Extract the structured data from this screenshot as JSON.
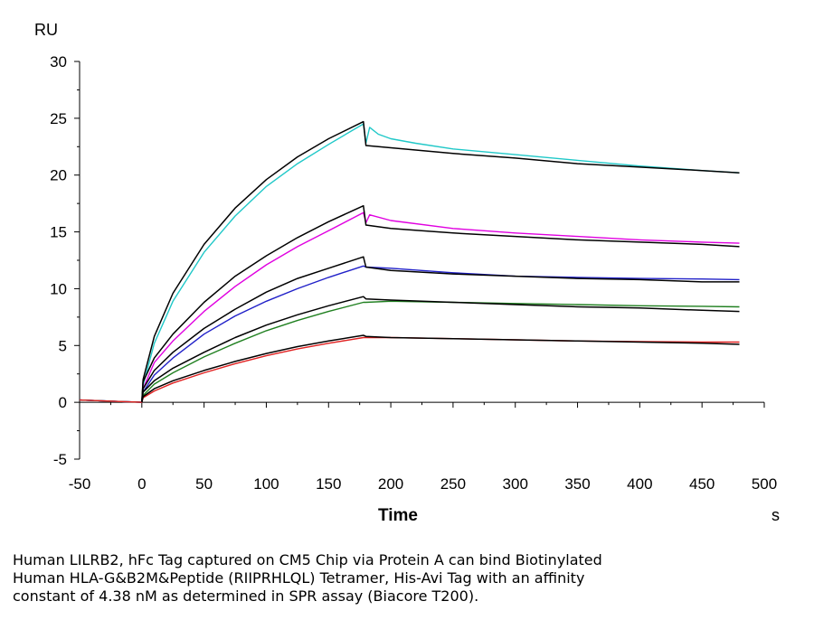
{
  "chart_data": {
    "type": "line",
    "ylabel": "RU",
    "xlabel": "Time",
    "x_unit": "s",
    "xlim": [
      -50,
      500
    ],
    "ylim": [
      -5,
      30
    ],
    "x_ticks": [
      -50,
      0,
      50,
      100,
      150,
      200,
      250,
      300,
      350,
      400,
      450,
      500
    ],
    "y_ticks": [
      -5,
      0,
      5,
      10,
      15,
      20,
      25,
      30
    ],
    "grid": false,
    "injection_end": 180,
    "series": [
      {
        "color": "#20c8c8",
        "kind": "measured",
        "points": [
          [
            -50,
            0.2
          ],
          [
            0,
            0
          ],
          [
            1,
            1.5
          ],
          [
            10,
            5.2
          ],
          [
            25,
            8.9
          ],
          [
            50,
            13.2
          ],
          [
            75,
            16.4
          ],
          [
            100,
            19.0
          ],
          [
            125,
            21.0
          ],
          [
            150,
            22.7
          ],
          [
            178,
            24.5
          ],
          [
            180,
            22.8
          ],
          [
            183,
            24.2
          ],
          [
            190,
            23.6
          ],
          [
            200,
            23.2
          ],
          [
            220,
            22.8
          ],
          [
            250,
            22.3
          ],
          [
            300,
            21.8
          ],
          [
            350,
            21.3
          ],
          [
            400,
            20.8
          ],
          [
            450,
            20.4
          ],
          [
            480,
            20.2
          ]
        ]
      },
      {
        "color": "#000000",
        "kind": "fit",
        "points": [
          [
            0,
            0
          ],
          [
            1,
            2.0
          ],
          [
            10,
            5.8
          ],
          [
            25,
            9.6
          ],
          [
            50,
            13.9
          ],
          [
            75,
            17.1
          ],
          [
            100,
            19.6
          ],
          [
            125,
            21.6
          ],
          [
            150,
            23.2
          ],
          [
            178,
            24.7
          ],
          [
            180,
            22.6
          ],
          [
            200,
            22.4
          ],
          [
            250,
            21.9
          ],
          [
            300,
            21.5
          ],
          [
            350,
            21.0
          ],
          [
            400,
            20.7
          ],
          [
            450,
            20.4
          ],
          [
            480,
            20.2
          ]
        ]
      },
      {
        "color": "#e000e0",
        "kind": "measured",
        "points": [
          [
            -50,
            0.2
          ],
          [
            0,
            0
          ],
          [
            1,
            1.2
          ],
          [
            10,
            3.5
          ],
          [
            25,
            5.4
          ],
          [
            50,
            8.0
          ],
          [
            75,
            10.2
          ],
          [
            100,
            12.1
          ],
          [
            125,
            13.7
          ],
          [
            150,
            15.1
          ],
          [
            178,
            16.7
          ],
          [
            180,
            15.8
          ],
          [
            183,
            16.5
          ],
          [
            200,
            16.0
          ],
          [
            250,
            15.3
          ],
          [
            300,
            14.9
          ],
          [
            350,
            14.6
          ],
          [
            400,
            14.3
          ],
          [
            450,
            14.1
          ],
          [
            480,
            14.0
          ]
        ]
      },
      {
        "color": "#000000",
        "kind": "fit",
        "points": [
          [
            0,
            0
          ],
          [
            1,
            1.8
          ],
          [
            10,
            3.9
          ],
          [
            25,
            6.0
          ],
          [
            50,
            8.8
          ],
          [
            75,
            11.1
          ],
          [
            100,
            12.9
          ],
          [
            125,
            14.5
          ],
          [
            150,
            15.9
          ],
          [
            178,
            17.3
          ],
          [
            180,
            15.6
          ],
          [
            200,
            15.3
          ],
          [
            250,
            14.9
          ],
          [
            300,
            14.6
          ],
          [
            350,
            14.3
          ],
          [
            400,
            14.1
          ],
          [
            450,
            13.9
          ],
          [
            480,
            13.7
          ]
        ]
      },
      {
        "color": "#2020c8",
        "kind": "measured",
        "points": [
          [
            -50,
            0.2
          ],
          [
            0,
            0
          ],
          [
            1,
            0.9
          ],
          [
            10,
            2.4
          ],
          [
            25,
            3.9
          ],
          [
            50,
            6.0
          ],
          [
            75,
            7.6
          ],
          [
            100,
            8.9
          ],
          [
            125,
            10.0
          ],
          [
            150,
            11.0
          ],
          [
            178,
            12.0
          ],
          [
            180,
            11.9
          ],
          [
            200,
            11.8
          ],
          [
            250,
            11.4
          ],
          [
            300,
            11.1
          ],
          [
            350,
            11.0
          ],
          [
            400,
            10.9
          ],
          [
            450,
            10.85
          ],
          [
            480,
            10.8
          ]
        ]
      },
      {
        "color": "#000000",
        "kind": "fit",
        "points": [
          [
            0,
            0
          ],
          [
            1,
            1.2
          ],
          [
            10,
            2.8
          ],
          [
            25,
            4.4
          ],
          [
            50,
            6.5
          ],
          [
            75,
            8.2
          ],
          [
            100,
            9.7
          ],
          [
            125,
            10.9
          ],
          [
            150,
            11.8
          ],
          [
            178,
            12.8
          ],
          [
            180,
            11.9
          ],
          [
            200,
            11.6
          ],
          [
            250,
            11.3
          ],
          [
            300,
            11.1
          ],
          [
            350,
            10.9
          ],
          [
            400,
            10.8
          ],
          [
            450,
            10.6
          ],
          [
            480,
            10.6
          ]
        ]
      },
      {
        "color": "#208020",
        "kind": "measured",
        "points": [
          [
            -50,
            0.2
          ],
          [
            0,
            0
          ],
          [
            1,
            0.6
          ],
          [
            10,
            1.6
          ],
          [
            25,
            2.6
          ],
          [
            50,
            4.0
          ],
          [
            75,
            5.2
          ],
          [
            100,
            6.3
          ],
          [
            125,
            7.2
          ],
          [
            150,
            8.0
          ],
          [
            178,
            8.8
          ],
          [
            180,
            8.8
          ],
          [
            200,
            8.9
          ],
          [
            250,
            8.8
          ],
          [
            300,
            8.7
          ],
          [
            350,
            8.6
          ],
          [
            400,
            8.5
          ],
          [
            450,
            8.45
          ],
          [
            480,
            8.4
          ]
        ]
      },
      {
        "color": "#000000",
        "kind": "fit",
        "points": [
          [
            0,
            0
          ],
          [
            1,
            0.9
          ],
          [
            10,
            1.9
          ],
          [
            25,
            3.0
          ],
          [
            50,
            4.4
          ],
          [
            75,
            5.7
          ],
          [
            100,
            6.8
          ],
          [
            125,
            7.7
          ],
          [
            150,
            8.5
          ],
          [
            178,
            9.3
          ],
          [
            180,
            9.1
          ],
          [
            200,
            9.0
          ],
          [
            250,
            8.8
          ],
          [
            300,
            8.6
          ],
          [
            350,
            8.4
          ],
          [
            400,
            8.3
          ],
          [
            450,
            8.1
          ],
          [
            480,
            8.0
          ]
        ]
      },
      {
        "color": "#e02020",
        "kind": "measured",
        "points": [
          [
            -50,
            0.2
          ],
          [
            0,
            0
          ],
          [
            1,
            0.4
          ],
          [
            10,
            1.0
          ],
          [
            25,
            1.7
          ],
          [
            50,
            2.6
          ],
          [
            75,
            3.4
          ],
          [
            100,
            4.1
          ],
          [
            125,
            4.7
          ],
          [
            150,
            5.2
          ],
          [
            178,
            5.7
          ],
          [
            180,
            5.7
          ],
          [
            200,
            5.7
          ],
          [
            250,
            5.6
          ],
          [
            300,
            5.5
          ],
          [
            350,
            5.4
          ],
          [
            400,
            5.35
          ],
          [
            450,
            5.3
          ],
          [
            480,
            5.3
          ]
        ]
      },
      {
        "color": "#000000",
        "kind": "fit",
        "points": [
          [
            0,
            0
          ],
          [
            1,
            0.5
          ],
          [
            10,
            1.2
          ],
          [
            25,
            1.9
          ],
          [
            50,
            2.8
          ],
          [
            75,
            3.6
          ],
          [
            100,
            4.3
          ],
          [
            125,
            4.9
          ],
          [
            150,
            5.4
          ],
          [
            178,
            5.9
          ],
          [
            180,
            5.8
          ],
          [
            200,
            5.7
          ],
          [
            250,
            5.6
          ],
          [
            300,
            5.5
          ],
          [
            350,
            5.4
          ],
          [
            400,
            5.3
          ],
          [
            450,
            5.2
          ],
          [
            480,
            5.1
          ]
        ]
      }
    ]
  },
  "caption": {
    "lines": [
      "Human LILRB2, hFc Tag captured on CM5 Chip via Protein A can bind Biotinylated",
      "Human HLA-G&B2M&Peptide (RIIPRHLQL) Tetramer, His-Avi Tag with an affinity",
      "constant of 4.38 nM as determined in SPR assay (Biacore T200)."
    ]
  }
}
